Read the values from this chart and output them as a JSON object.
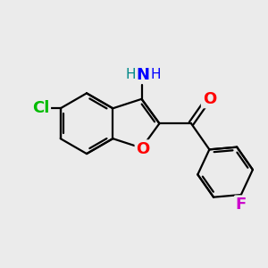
{
  "bg_color": "#EBEBEB",
  "bond_color": "#000000",
  "bond_width": 1.6,
  "atom_colors": {
    "Cl": "#00BB00",
    "O": "#FF0000",
    "N": "#0000FF",
    "F": "#CC00CC"
  },
  "font_size_atoms": 13,
  "font_size_H": 11,
  "figsize": [
    3.0,
    3.0
  ],
  "dpi": 100
}
